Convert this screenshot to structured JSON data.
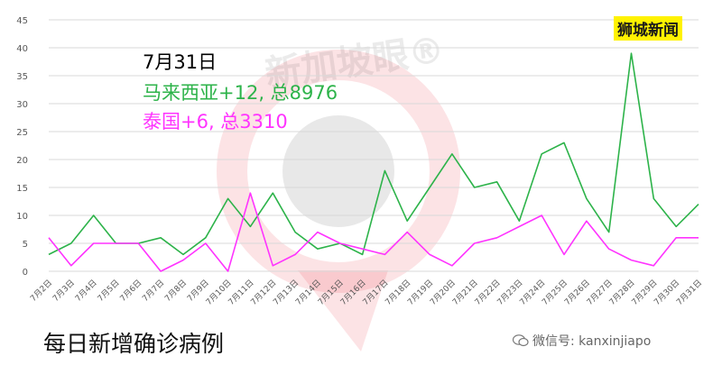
{
  "colors": {
    "malaysia": "#2db34a",
    "thailand": "#ff33ff",
    "axis_text": "#595959",
    "grid": "#d9d9d9",
    "watermark": "#e6162d"
  },
  "annotation": {
    "date": "7月31日",
    "malaysia": "马来西亚+12, 总8976",
    "thailand": "泰国+6, 总3310"
  },
  "brand": "狮城新闻",
  "caption": "每日新增确诊病例",
  "wechat": {
    "icon": "wechat-icon",
    "label": "微信号: kanxinjiapo"
  },
  "watermark": {
    "text": "新加坡眼®"
  },
  "chart_data": {
    "type": "line",
    "categories": [
      "7月2日",
      "7月3日",
      "7月4日",
      "7月5日",
      "7月6日",
      "7月7日",
      "7月8日",
      "7月9日",
      "7月10日",
      "7月11日",
      "7月12日",
      "7月13日",
      "7月14日",
      "7月15日",
      "7月16日",
      "7月17日",
      "7月18日",
      "7月19日",
      "7月20日",
      "7月21日",
      "7月22日",
      "7月23日",
      "7月24日",
      "7月25日",
      "7月26日",
      "7月27日",
      "7月28日",
      "7月29日",
      "7月30日",
      "7月31日"
    ],
    "series": [
      {
        "values": [
          3,
          5,
          10,
          5,
          5,
          6,
          3,
          6,
          13,
          8,
          14,
          7,
          4,
          5,
          3,
          18,
          9,
          15,
          21,
          15,
          16,
          9,
          21,
          23,
          13,
          7,
          39,
          13,
          8,
          12
        ]
      },
      {
        "values": [
          6,
          1,
          5,
          5,
          5,
          0,
          2,
          5,
          0,
          14,
          1,
          3,
          7,
          5,
          4,
          3,
          7,
          3,
          1,
          5,
          6,
          8,
          10,
          3,
          9,
          4,
          2,
          1,
          6,
          6
        ]
      }
    ],
    "yticks": [
      0,
      5,
      10,
      15,
      20,
      25,
      30,
      35,
      40,
      45
    ],
    "ylim": [
      0,
      45
    ],
    "grid": true,
    "legend": "none"
  }
}
